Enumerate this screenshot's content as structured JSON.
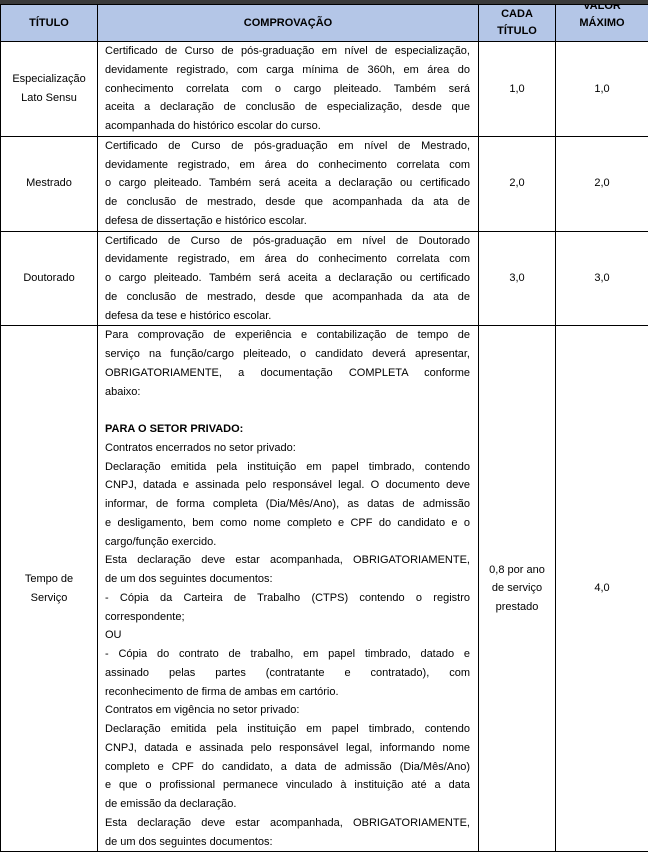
{
  "header": {
    "titulo": "TÍTULO",
    "comprovacao": "COMPROVAÇÃO",
    "cada_titulo": [
      "CADA",
      "TÍTULO"
    ],
    "valor_maximo": [
      "VALOR",
      "MÁXIMO"
    ]
  },
  "rows": [
    {
      "titulo": [
        "Especialização",
        "Lato Sensu"
      ],
      "cada": [
        "1,0"
      ],
      "max": "1,0",
      "paragraphs": [
        {
          "lines": [
            "Certificado de Curso de pós-graduação em nível de especialização,",
            "devidamente registrado, com carga mínima de 360h, em área do",
            "conhecimento correlata com o cargo pleiteado. Também será",
            "aceita a declaração de conclusão de especialização, desde que",
            "acompanhada do histórico escolar do curso."
          ]
        }
      ]
    },
    {
      "titulo": [
        "Mestrado"
      ],
      "cada": [
        "2,0"
      ],
      "max": "2,0",
      "paragraphs": [
        {
          "lines": [
            "Certificado de Curso de pós-graduação em nível de Mestrado,",
            "devidamente registrado, em área do conhecimento correlata com",
            "o cargo pleiteado. Também será aceita a declaração ou certificado",
            "de conclusão de mestrado, desde que acompanhada da ata de",
            "defesa de dissertação e histórico escolar."
          ]
        }
      ]
    },
    {
      "titulo": [
        "Doutorado"
      ],
      "cada": [
        "3,0"
      ],
      "max": "3,0",
      "paragraphs": [
        {
          "lines": [
            "Certificado de Curso de pós-graduação em nível de Doutorado",
            "devidamente registrado, em área do conhecimento correlata com",
            "o cargo pleiteado. Também será aceita a declaração ou certificado",
            "de conclusão de mestrado, desde que acompanhada da ata de",
            "defesa da tese e histórico escolar."
          ]
        }
      ]
    },
    {
      "titulo": [
        "Tempo de",
        "Serviço"
      ],
      "cada": [
        "0,8 por ano",
        "de serviço",
        "prestado"
      ],
      "max": "4,0",
      "paragraphs": [
        {
          "lines": [
            "Para comprovação de experiência e contabilização de tempo de",
            "serviço na função/cargo pleiteado, o candidato deverá apresentar,",
            "OBRIGATORIAMENTE, a documentação COMPLETA conforme",
            "abaixo:"
          ]
        },
        {
          "lines": [
            ""
          ]
        },
        {
          "bold": true,
          "lines": [
            "PARA O SETOR PRIVADO:"
          ]
        },
        {
          "lines": [
            "Contratos encerrados no setor privado:"
          ]
        },
        {
          "lines": [
            "Declaração emitida pela instituição em papel timbrado, contendo",
            "CNPJ, datada e assinada pelo responsável legal. O documento deve",
            "informar, de forma completa (Dia/Mês/Ano), as datas de admissão",
            "e desligamento, bem como nome completo e CPF do candidato e o",
            "cargo/função exercido."
          ]
        },
        {
          "lines": [
            "Esta declaração deve estar acompanhada, OBRIGATORIAMENTE,",
            "de um dos seguintes documentos:"
          ]
        },
        {
          "lines": [
            "- Cópia da Carteira de Trabalho (CTPS) contendo o registro",
            "correspondente;"
          ]
        },
        {
          "lines": [
            "OU"
          ]
        },
        {
          "lines": [
            "- Cópia do contrato de trabalho, em papel timbrado, datado e",
            "assinado pelas partes (contratante e contratado), com",
            "reconhecimento de firma de ambas em cartório."
          ]
        },
        {
          "lines": [
            "Contratos em vigência no setor privado:"
          ]
        },
        {
          "lines": [
            "Declaração emitida pela instituição em papel timbrado, contendo",
            "CNPJ, datada e assinada pelo responsável legal, informando nome",
            "completo e CPF do candidato, a data de admissão (Dia/Mês/Ano)",
            "e que o profissional permanece vinculado à instituição até a data",
            "de emissão da declaração."
          ]
        },
        {
          "lines": [
            "Esta declaração deve estar acompanhada, OBRIGATORIAMENTE,",
            "de um dos seguintes documentos:"
          ]
        }
      ]
    }
  ]
}
